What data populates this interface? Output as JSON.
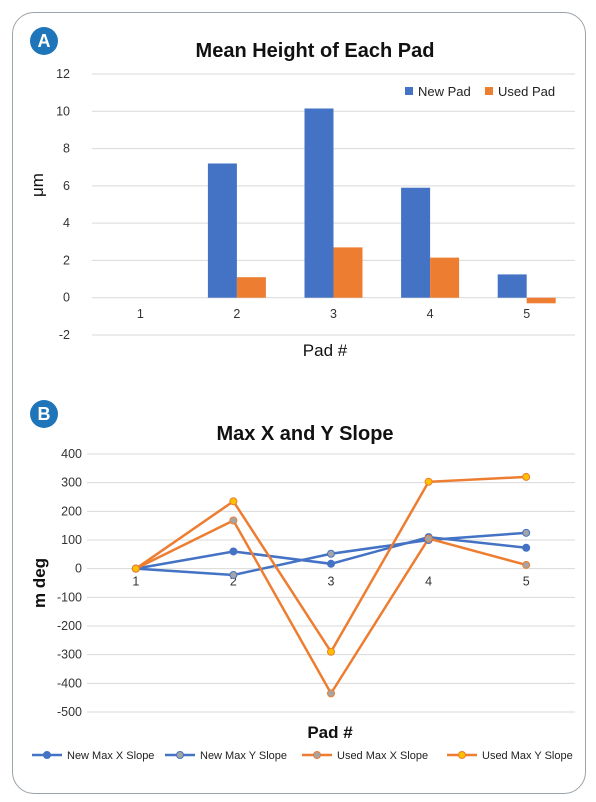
{
  "panels": [
    {
      "label": "A",
      "color": "#1f75b9"
    },
    {
      "label": "B",
      "color": "#1f75b9"
    }
  ],
  "chart_data": [
    {
      "type": "bar",
      "title": "Mean Height of Each Pad",
      "xlabel": "Pad #",
      "ylabel": "μm",
      "categories": [
        "1",
        "2",
        "3",
        "4",
        "5"
      ],
      "series": [
        {
          "name": "New Pad",
          "color": "#4472c4",
          "values": [
            0,
            7.2,
            10.15,
            5.9,
            1.25
          ]
        },
        {
          "name": "Used Pad",
          "color": "#ed7d31",
          "values": [
            0,
            1.1,
            2.7,
            2.15,
            -0.3
          ]
        }
      ],
      "ylim": [
        -2,
        12
      ],
      "yticks": [
        "-2",
        "0",
        "2",
        "4",
        "6",
        "8",
        "10",
        "12"
      ],
      "grid": true,
      "legend": "top-right"
    },
    {
      "type": "line",
      "title": "Max X and Y Slope",
      "xlabel": "Pad #",
      "ylabel": "m deg",
      "categories": [
        "1",
        "2",
        "3",
        "4",
        "5"
      ],
      "series": [
        {
          "name": "New Max X Slope",
          "color": "#4472c4",
          "marker": "#4472c4",
          "values": [
            0,
            60,
            17,
            110,
            73
          ]
        },
        {
          "name": "New Max Y Slope",
          "color": "#4472c4",
          "marker": "#a5a5a5",
          "values": [
            0,
            -22,
            52,
            100,
            125
          ]
        },
        {
          "name": "Used Max X Slope",
          "color": "#ed7d31",
          "marker": "#a5a5a5",
          "values": [
            0,
            168,
            -435,
            105,
            13
          ]
        },
        {
          "name": "Used Max Y Slope",
          "color": "#ed7d31",
          "marker": "#ffc000",
          "values": [
            0,
            235,
            -290,
            303,
            320
          ]
        }
      ],
      "ylim": [
        -500,
        400
      ],
      "yticks": [
        "-500",
        "-400",
        "-300",
        "-200",
        "-100",
        "0",
        "100",
        "200",
        "300",
        "400"
      ],
      "grid": true,
      "legend": "bottom"
    }
  ]
}
